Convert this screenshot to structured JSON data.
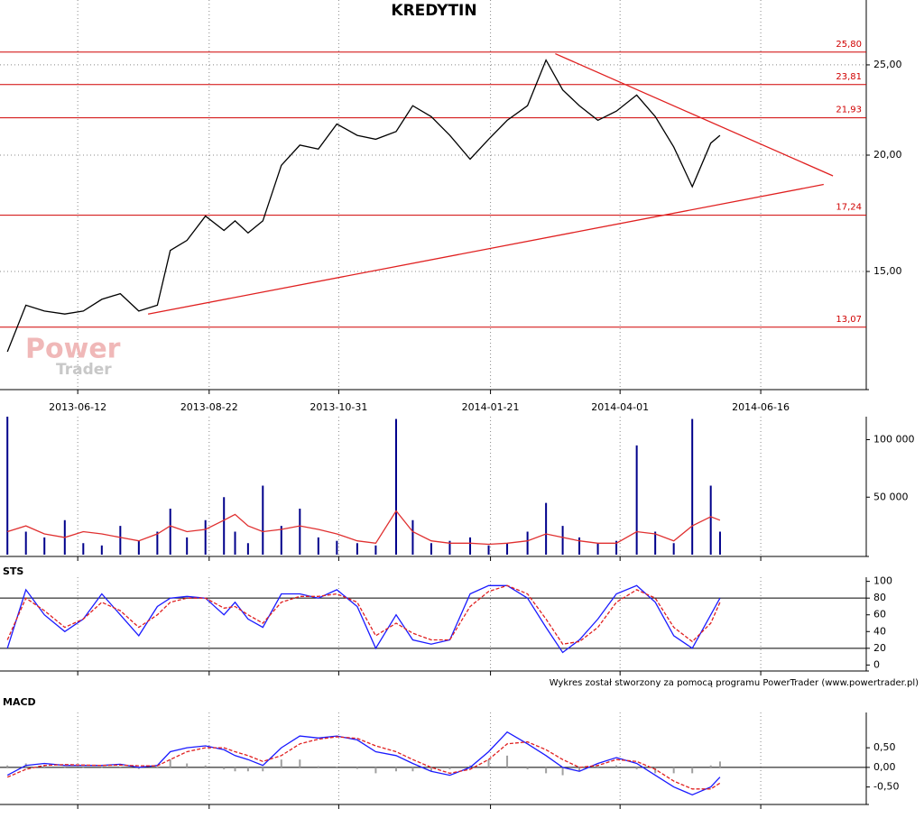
{
  "chart_data": [
    {
      "type": "line",
      "title": "KREDYTIN",
      "log": true,
      "watermark": [
        "Power",
        "Trader"
      ],
      "xlim": [
        "2013-05-01",
        "2014-08-12"
      ],
      "xticks": [
        "2013-06-12",
        "2013-08-22",
        "2013-10-31",
        "2014-01-21",
        "2014-04-01",
        "2014-06-16"
      ],
      "ylim": [
        11.25,
        29.35
      ],
      "yticks": [
        {
          "value": 15,
          "label": "15,00"
        },
        {
          "value": 20,
          "label": "20,00"
        },
        {
          "value": 25,
          "label": "25,00"
        }
      ],
      "x": [
        "2013-05-05",
        "2013-05-15",
        "2013-05-25",
        "2013-06-05",
        "2013-06-15",
        "2013-06-25",
        "2013-07-05",
        "2013-07-15",
        "2013-07-25",
        "2013-08-01",
        "2013-08-10",
        "2013-08-20",
        "2013-08-30",
        "2013-09-05",
        "2013-09-12",
        "2013-09-20",
        "2013-09-30",
        "2013-10-10",
        "2013-10-20",
        "2013-10-30",
        "2013-11-10",
        "2013-11-20",
        "2013-12-01",
        "2013-12-10",
        "2013-12-20",
        "2013-12-30",
        "2014-01-10",
        "2014-01-20",
        "2014-01-30",
        "2014-02-10",
        "2014-02-20",
        "2014-03-01",
        "2014-03-10",
        "2014-03-20",
        "2014-03-30",
        "2014-04-10",
        "2014-04-20",
        "2014-04-30",
        "2014-05-10",
        "2014-05-20",
        "2014-05-25"
      ],
      "series": [
        {
          "color": "#000000",
          "values": [
            12.3,
            13.8,
            13.6,
            13.5,
            13.6,
            14.0,
            14.2,
            13.6,
            13.8,
            15.8,
            16.2,
            17.2,
            16.6,
            17.0,
            16.5,
            17.0,
            19.5,
            20.5,
            20.3,
            21.6,
            21.0,
            20.8,
            21.2,
            22.6,
            22.0,
            21.0,
            19.8,
            20.8,
            21.8,
            22.6,
            25.3,
            23.5,
            22.6,
            21.8,
            22.3,
            23.2,
            22.0,
            20.4,
            18.5,
            20.6,
            21.0
          ]
        }
      ],
      "levels": {
        "color": "#d00000",
        "values": [
          25.8,
          23.81,
          21.93,
          17.24,
          13.07
        ],
        "value_labels": [
          "25,80",
          "23,81",
          "21,93",
          "17,24",
          "13,07"
        ]
      },
      "trendlines": [
        {
          "color": "#e02020",
          "x": [
            "2014-02-25",
            "2014-07-25"
          ],
          "values": [
            25.7,
            19.0
          ]
        },
        {
          "color": "#e02020",
          "x": [
            "2013-07-20",
            "2014-07-20"
          ],
          "values": [
            13.5,
            18.6
          ]
        }
      ]
    },
    {
      "type": "bar",
      "ylim": [
        0,
        120000
      ],
      "yticks": [
        {
          "value": 50000,
          "label": "50 000"
        },
        {
          "value": 100000,
          "label": "100 000"
        }
      ],
      "x": [
        "2013-05-05",
        "2013-05-15",
        "2013-05-25",
        "2013-06-05",
        "2013-06-15",
        "2013-06-25",
        "2013-07-05",
        "2013-07-15",
        "2013-07-25",
        "2013-08-01",
        "2013-08-10",
        "2013-08-20",
        "2013-08-30",
        "2013-09-05",
        "2013-09-12",
        "2013-09-20",
        "2013-09-30",
        "2013-10-10",
        "2013-10-20",
        "2013-10-30",
        "2013-11-10",
        "2013-11-20",
        "2013-12-01",
        "2013-12-10",
        "2013-12-20",
        "2013-12-30",
        "2014-01-10",
        "2014-01-20",
        "2014-01-30",
        "2014-02-10",
        "2014-02-20",
        "2014-03-01",
        "2014-03-10",
        "2014-03-20",
        "2014-03-30",
        "2014-04-10",
        "2014-04-20",
        "2014-04-30",
        "2014-05-10",
        "2014-05-20",
        "2014-05-25"
      ],
      "series": [
        {
          "type": "bar",
          "color": "#00008b",
          "values": [
            120000,
            20000,
            15000,
            30000,
            10000,
            8000,
            25000,
            12000,
            20000,
            40000,
            15000,
            30000,
            50000,
            20000,
            10000,
            60000,
            25000,
            40000,
            15000,
            12000,
            10000,
            8000,
            118000,
            30000,
            10000,
            12000,
            15000,
            8000,
            10000,
            20000,
            45000,
            25000,
            15000,
            10000,
            12000,
            95000,
            20000,
            10000,
            118000,
            60000,
            20000
          ]
        },
        {
          "type": "line",
          "color": "#e03030",
          "values": [
            20000,
            25000,
            18000,
            15000,
            20000,
            18000,
            15000,
            12000,
            18000,
            25000,
            20000,
            22000,
            30000,
            35000,
            25000,
            20000,
            22000,
            25000,
            22000,
            18000,
            12000,
            10000,
            38000,
            20000,
            12000,
            10000,
            10000,
            9000,
            10000,
            12000,
            18000,
            15000,
            12000,
            10000,
            10000,
            20000,
            18000,
            12000,
            25000,
            33000,
            30000
          ]
        }
      ]
    },
    {
      "type": "line",
      "title": "STS",
      "ylim": [
        -5,
        105
      ],
      "yticks": [
        0,
        20,
        40,
        60,
        80,
        100
      ],
      "levels": {
        "color": "#000000",
        "values": [
          20,
          80
        ]
      },
      "x": [
        "2013-05-05",
        "2013-05-15",
        "2013-05-25",
        "2013-06-05",
        "2013-06-15",
        "2013-06-25",
        "2013-07-05",
        "2013-07-15",
        "2013-07-25",
        "2013-08-01",
        "2013-08-10",
        "2013-08-20",
        "2013-08-30",
        "2013-09-05",
        "2013-09-12",
        "2013-09-20",
        "2013-09-30",
        "2013-10-10",
        "2013-10-20",
        "2013-10-30",
        "2013-11-10",
        "2013-11-20",
        "2013-12-01",
        "2013-12-10",
        "2013-12-20",
        "2013-12-30",
        "2014-01-10",
        "2014-01-20",
        "2014-01-30",
        "2014-02-10",
        "2014-02-20",
        "2014-03-01",
        "2014-03-10",
        "2014-03-20",
        "2014-03-30",
        "2014-04-10",
        "2014-04-20",
        "2014-04-30",
        "2014-05-10",
        "2014-05-20",
        "2014-05-25"
      ],
      "series": [
        {
          "type": "line",
          "color": "#1a1aff",
          "values": [
            20,
            90,
            60,
            40,
            55,
            85,
            60,
            35,
            70,
            80,
            82,
            80,
            60,
            75,
            55,
            45,
            85,
            85,
            80,
            90,
            70,
            20,
            60,
            30,
            25,
            30,
            85,
            95,
            95,
            80,
            45,
            15,
            30,
            55,
            85,
            95,
            75,
            35,
            20,
            60,
            80
          ]
        },
        {
          "type": "line",
          "color": "#e02020",
          "dash": true,
          "values": [
            30,
            80,
            65,
            45,
            55,
            75,
            65,
            45,
            60,
            75,
            80,
            80,
            68,
            70,
            60,
            50,
            75,
            82,
            82,
            85,
            75,
            35,
            50,
            38,
            30,
            30,
            70,
            88,
            95,
            85,
            55,
            25,
            28,
            45,
            75,
            90,
            80,
            45,
            28,
            50,
            75
          ]
        }
      ]
    },
    {
      "type": "line",
      "title": "MACD",
      "ylim": [
        -0.9,
        1.4
      ],
      "yticks": [
        {
          "value": -0.5,
          "label": "-0,50"
        },
        {
          "value": 0,
          "label": "0,00"
        },
        {
          "value": 0.5,
          "label": "0,50"
        }
      ],
      "levels": {
        "color": "#000000",
        "values": [
          0
        ]
      },
      "x": [
        "2013-05-05",
        "2013-05-15",
        "2013-05-25",
        "2013-06-05",
        "2013-06-15",
        "2013-06-25",
        "2013-07-05",
        "2013-07-15",
        "2013-07-25",
        "2013-08-01",
        "2013-08-10",
        "2013-08-20",
        "2013-08-30",
        "2013-09-05",
        "2013-09-12",
        "2013-09-20",
        "2013-09-30",
        "2013-10-10",
        "2013-10-20",
        "2013-10-30",
        "2013-11-10",
        "2013-11-20",
        "2013-12-01",
        "2013-12-10",
        "2013-12-20",
        "2013-12-30",
        "2014-01-10",
        "2014-01-20",
        "2014-01-30",
        "2014-02-10",
        "2014-02-20",
        "2014-03-01",
        "2014-03-10",
        "2014-03-20",
        "2014-03-30",
        "2014-04-10",
        "2014-04-20",
        "2014-04-30",
        "2014-05-10",
        "2014-05-20",
        "2014-05-25"
      ],
      "series": [
        {
          "type": "bar",
          "color": "#a0a0a0",
          "values": [
            0.05,
            0.1,
            0.05,
            -0.02,
            -0.01,
            0,
            0.02,
            -0.04,
            0.01,
            0.2,
            0.1,
            0.05,
            -0.05,
            -0.1,
            -0.1,
            -0.1,
            0.2,
            0.2,
            0.03,
            0.02,
            -0.04,
            -0.15,
            -0.1,
            -0.1,
            -0.1,
            -0.05,
            0.05,
            0.2,
            0.3,
            -0.05,
            -0.15,
            -0.2,
            -0.1,
            0.05,
            0.05,
            -0.05,
            -0.15,
            -0.15,
            -0.15,
            0.05,
            0.15
          ]
        },
        {
          "type": "line",
          "color": "#1a1aff",
          "values": [
            -0.2,
            0.05,
            0.1,
            0.05,
            0.05,
            0.05,
            0.08,
            0.0,
            0.05,
            0.4,
            0.5,
            0.55,
            0.45,
            0.3,
            0.2,
            0.05,
            0.5,
            0.8,
            0.75,
            0.8,
            0.7,
            0.4,
            0.3,
            0.1,
            -0.1,
            -0.2,
            0.0,
            0.4,
            0.9,
            0.6,
            0.3,
            0.0,
            -0.1,
            0.1,
            0.25,
            0.1,
            -0.2,
            -0.5,
            -0.7,
            -0.5,
            -0.25
          ]
        },
        {
          "type": "line",
          "color": "#e02020",
          "dash": true,
          "values": [
            -0.25,
            -0.05,
            0.05,
            0.07,
            0.06,
            0.05,
            0.06,
            0.04,
            0.04,
            0.2,
            0.4,
            0.5,
            0.5,
            0.4,
            0.3,
            0.15,
            0.3,
            0.6,
            0.72,
            0.78,
            0.74,
            0.55,
            0.4,
            0.2,
            0.0,
            -0.15,
            -0.05,
            0.2,
            0.6,
            0.65,
            0.45,
            0.2,
            0.0,
            0.05,
            0.2,
            0.15,
            -0.05,
            -0.35,
            -0.55,
            -0.55,
            -0.4
          ]
        }
      ]
    }
  ],
  "footer": "Wykres został stworzony za pomocą programu PowerTrader (www.powertrader.pl)"
}
